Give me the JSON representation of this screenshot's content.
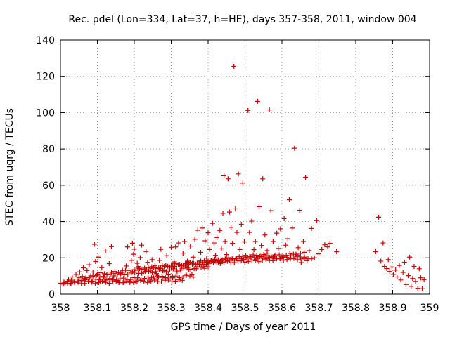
{
  "chart_data": {
    "type": "scatter",
    "title": "Rec. pdel (Lon=334, Lat=37, h=HE), days 357-358, 2011, window 004",
    "xlabel": "GPS time / Days of year 2011",
    "ylabel": "STEC from uqrg / TECUs",
    "xlim": [
      358,
      359
    ],
    "ylim": [
      0,
      140
    ],
    "xticks": [
      "358",
      "358.1",
      "358.2",
      "358.3",
      "358.4",
      "358.5",
      "358.6",
      "358.7",
      "358.8",
      "358.9",
      "359"
    ],
    "yticks": [
      "0",
      "20",
      "40",
      "60",
      "80",
      "100",
      "120",
      "140"
    ],
    "grid": true,
    "marker": "plus",
    "color": "#cc0000",
    "points": [
      [
        358.008,
        5.5
      ],
      [
        358.012,
        6.2
      ],
      [
        358.018,
        7.1
      ],
      [
        358.022,
        8.3
      ],
      [
        358.028,
        6.0
      ],
      [
        358.032,
        9.5
      ],
      [
        358.038,
        7.0
      ],
      [
        358.042,
        10.8
      ],
      [
        358.048,
        6.6
      ],
      [
        358.052,
        12.3
      ],
      [
        358.058,
        7.4
      ],
      [
        358.062,
        14.5
      ],
      [
        358.066,
        8.6
      ],
      [
        358.072,
        13.0
      ],
      [
        358.078,
        16.2
      ],
      [
        358.082,
        10.1
      ],
      [
        358.088,
        12.2
      ],
      [
        358.092,
        27.5
      ],
      [
        358.095,
        18.0
      ],
      [
        358.1,
        11.1
      ],
      [
        358.102,
        20.4
      ],
      [
        358.108,
        6.9
      ],
      [
        358.112,
        14.6
      ],
      [
        358.118,
        9.3
      ],
      [
        358.122,
        23.8
      ],
      [
        358.128,
        8.0
      ],
      [
        358.132,
        16.8
      ],
      [
        358.138,
        26.2
      ],
      [
        358.142,
        7.8
      ],
      [
        358.148,
        11.5
      ],
      [
        358.152,
        8.2
      ],
      [
        358.158,
        6.5
      ],
      [
        358.162,
        10.9
      ],
      [
        358.168,
        13.1
      ],
      [
        358.172,
        6.4
      ],
      [
        358.178,
        15.5
      ],
      [
        358.182,
        26.0
      ],
      [
        358.188,
        6.5
      ],
      [
        358.192,
        18.6
      ],
      [
        358.195,
        28.1
      ],
      [
        358.198,
        22.0
      ],
      [
        358.2,
        24.8
      ],
      [
        358.204,
        7.2
      ],
      [
        358.208,
        17.0
      ],
      [
        358.212,
        15.2
      ],
      [
        358.216,
        20.1
      ],
      [
        358.22,
        27.0
      ],
      [
        358.224,
        12.0
      ],
      [
        358.228,
        14.3
      ],
      [
        358.232,
        23.5
      ],
      [
        358.236,
        17.5
      ],
      [
        358.24,
        8.2
      ],
      [
        358.244,
        12.8
      ],
      [
        358.248,
        19.0
      ],
      [
        358.252,
        9.6
      ],
      [
        358.256,
        15.6
      ],
      [
        358.26,
        11.3
      ],
      [
        358.264,
        10.0
      ],
      [
        358.268,
        18.6
      ],
      [
        358.272,
        24.7
      ],
      [
        358.276,
        9.2
      ],
      [
        358.28,
        13.0
      ],
      [
        358.284,
        8.4
      ],
      [
        358.288,
        21.2
      ],
      [
        358.292,
        11.0
      ],
      [
        358.296,
        14.8
      ],
      [
        358.3,
        25.8
      ],
      [
        358.304,
        9.0
      ],
      [
        358.308,
        17.8
      ],
      [
        358.312,
        26.0
      ],
      [
        358.316,
        12.4
      ],
      [
        358.32,
        28.2
      ],
      [
        358.324,
        8.3
      ],
      [
        358.328,
        15.0
      ],
      [
        358.332,
        22.6
      ],
      [
        358.336,
        29.0
      ],
      [
        358.34,
        10.8
      ],
      [
        358.344,
        18.2
      ],
      [
        358.348,
        13.6
      ],
      [
        358.352,
        26.5
      ],
      [
        358.356,
        11.0
      ],
      [
        358.36,
        20.4
      ],
      [
        358.364,
        30.2
      ],
      [
        358.368,
        14.0
      ],
      [
        358.372,
        35.2
      ],
      [
        358.376,
        17.3
      ],
      [
        358.38,
        23.0
      ],
      [
        358.384,
        36.4
      ],
      [
        358.388,
        15.4
      ],
      [
        358.392,
        29.4
      ],
      [
        358.396,
        19.8
      ],
      [
        358.4,
        33.8
      ],
      [
        358.404,
        24.6
      ],
      [
        358.408,
        18.5
      ],
      [
        358.412,
        39.0
      ],
      [
        358.416,
        28.2
      ],
      [
        358.42,
        21.4
      ],
      [
        358.424,
        31.2
      ],
      [
        358.428,
        17.5
      ],
      [
        358.432,
        35.1
      ],
      [
        358.436,
        25.0
      ],
      [
        358.44,
        44.5
      ],
      [
        358.443,
        65.5
      ],
      [
        358.446,
        29.0
      ],
      [
        358.45,
        21.8
      ],
      [
        358.454,
        63.5
      ],
      [
        358.458,
        45.2
      ],
      [
        358.462,
        36.8
      ],
      [
        358.466,
        28.0
      ],
      [
        358.47,
        125.5
      ],
      [
        358.474,
        47.0
      ],
      [
        358.478,
        34.0
      ],
      [
        358.482,
        66.2
      ],
      [
        358.486,
        24.6
      ],
      [
        358.49,
        38.5
      ],
      [
        358.494,
        61.2
      ],
      [
        358.498,
        28.8
      ],
      [
        358.502,
        21.4
      ],
      [
        358.508,
        101.2
      ],
      [
        358.512,
        34.0
      ],
      [
        358.518,
        40.2
      ],
      [
        358.524,
        24.5
      ],
      [
        358.528,
        29.0
      ],
      [
        358.534,
        106.2
      ],
      [
        358.538,
        48.2
      ],
      [
        358.544,
        26.8
      ],
      [
        358.548,
        63.5
      ],
      [
        358.554,
        32.6
      ],
      [
        358.56,
        24.0
      ],
      [
        358.566,
        101.5
      ],
      [
        358.57,
        46.0
      ],
      [
        358.576,
        29.0
      ],
      [
        358.58,
        21.0
      ],
      [
        358.586,
        33.6
      ],
      [
        358.59,
        25.2
      ],
      [
        358.596,
        36.0
      ],
      [
        358.6,
        20.4
      ],
      [
        358.606,
        41.6
      ],
      [
        358.61,
        27.0
      ],
      [
        358.616,
        30.5
      ],
      [
        358.62,
        52.0
      ],
      [
        358.624,
        21.2
      ],
      [
        358.628,
        36.4
      ],
      [
        358.634,
        80.4
      ],
      [
        358.638,
        22.0
      ],
      [
        358.644,
        25.6
      ],
      [
        358.648,
        46.2
      ],
      [
        358.652,
        17.4
      ],
      [
        358.658,
        29.0
      ],
      [
        358.664,
        64.4
      ],
      [
        358.668,
        18.4
      ],
      [
        358.674,
        24.0
      ],
      [
        358.68,
        36.2
      ],
      [
        358.688,
        20.0
      ],
      [
        358.694,
        40.5
      ],
      [
        358.7,
        22.2
      ],
      [
        358.708,
        24.6
      ],
      [
        358.716,
        27.2
      ],
      [
        358.724,
        26.0
      ],
      [
        358.73,
        28.0
      ],
      [
        358.748,
        23.4
      ],
      [
        358.854,
        23.4
      ],
      [
        358.862,
        42.4
      ],
      [
        358.868,
        18.2
      ],
      [
        358.874,
        28.2
      ],
      [
        358.878,
        15.3
      ],
      [
        358.884,
        14.1
      ],
      [
        358.888,
        19.0
      ],
      [
        358.892,
        12.5
      ],
      [
        358.898,
        15.0
      ],
      [
        358.902,
        10.8
      ],
      [
        358.908,
        13.3
      ],
      [
        358.912,
        9.5
      ],
      [
        358.918,
        15.8
      ],
      [
        358.922,
        7.8
      ],
      [
        358.928,
        12.0
      ],
      [
        358.932,
        17.6
      ],
      [
        358.936,
        5.3
      ],
      [
        358.942,
        10.2
      ],
      [
        358.946,
        20.4
      ],
      [
        358.95,
        4.3
      ],
      [
        358.954,
        8.6
      ],
      [
        358.958,
        15.3
      ],
      [
        358.962,
        7.0
      ],
      [
        358.968,
        3.2
      ],
      [
        358.972,
        14.0
      ],
      [
        358.976,
        9.0
      ],
      [
        358.98,
        3.0
      ],
      [
        358.985,
        8.0
      ]
    ],
    "band_segments": [
      {
        "x0": 358.0,
        "x1": 358.33,
        "y0": 6.0,
        "y1": 7.5
      },
      {
        "x0": 358.02,
        "x1": 358.36,
        "y0": 7.0,
        "y1": 10.0
      },
      {
        "x0": 358.05,
        "x1": 358.4,
        "y0": 9.0,
        "y1": 15.0
      },
      {
        "x0": 358.1,
        "x1": 358.5,
        "y0": 11.0,
        "y1": 19.5
      },
      {
        "x0": 358.2,
        "x1": 358.56,
        "y0": 13.5,
        "y1": 22.0
      },
      {
        "x0": 358.3,
        "x1": 358.68,
        "y0": 16.0,
        "y1": 20.0
      },
      {
        "x0": 358.4,
        "x1": 358.66,
        "y0": 18.0,
        "y1": 22.5
      },
      {
        "x0": 358.53,
        "x1": 358.66,
        "y0": 20.0,
        "y1": 20.0
      }
    ]
  }
}
